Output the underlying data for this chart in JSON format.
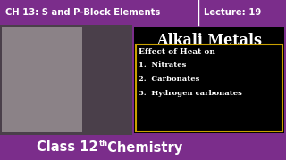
{
  "bg_color": "#000000",
  "purple_color": "#7B2D8B",
  "top_bar_color": "#7B2D8B",
  "bottom_bar_color": "#7B2D8B",
  "top_left_text": "CH 13: S and P-Block Elements",
  "top_right_text": "Lecture: 19",
  "bottom_text": "Class 12",
  "bottom_superscript": "th",
  "bottom_text2": " Chemistry",
  "title_text": "Alkali Metals",
  "box_title": "Effect of Heat on",
  "items": [
    "1.  Nitrates",
    "2.  Carbonates",
    "3.  Hydrogen carbonates"
  ],
  "title_color": "#FFFFFF",
  "box_text_color": "#FFFFFF",
  "top_text_color": "#FFFFFF",
  "bottom_text_color": "#FFFFFF",
  "divider_color": "#FFFFFF",
  "box_border_color": "#C8A000",
  "right_panel_bg": "#7B2D8B",
  "right_content_bg": "#000000",
  "left_panel_bg": "#5a4a5a",
  "figsize": [
    3.2,
    1.8
  ],
  "dpi": 100
}
